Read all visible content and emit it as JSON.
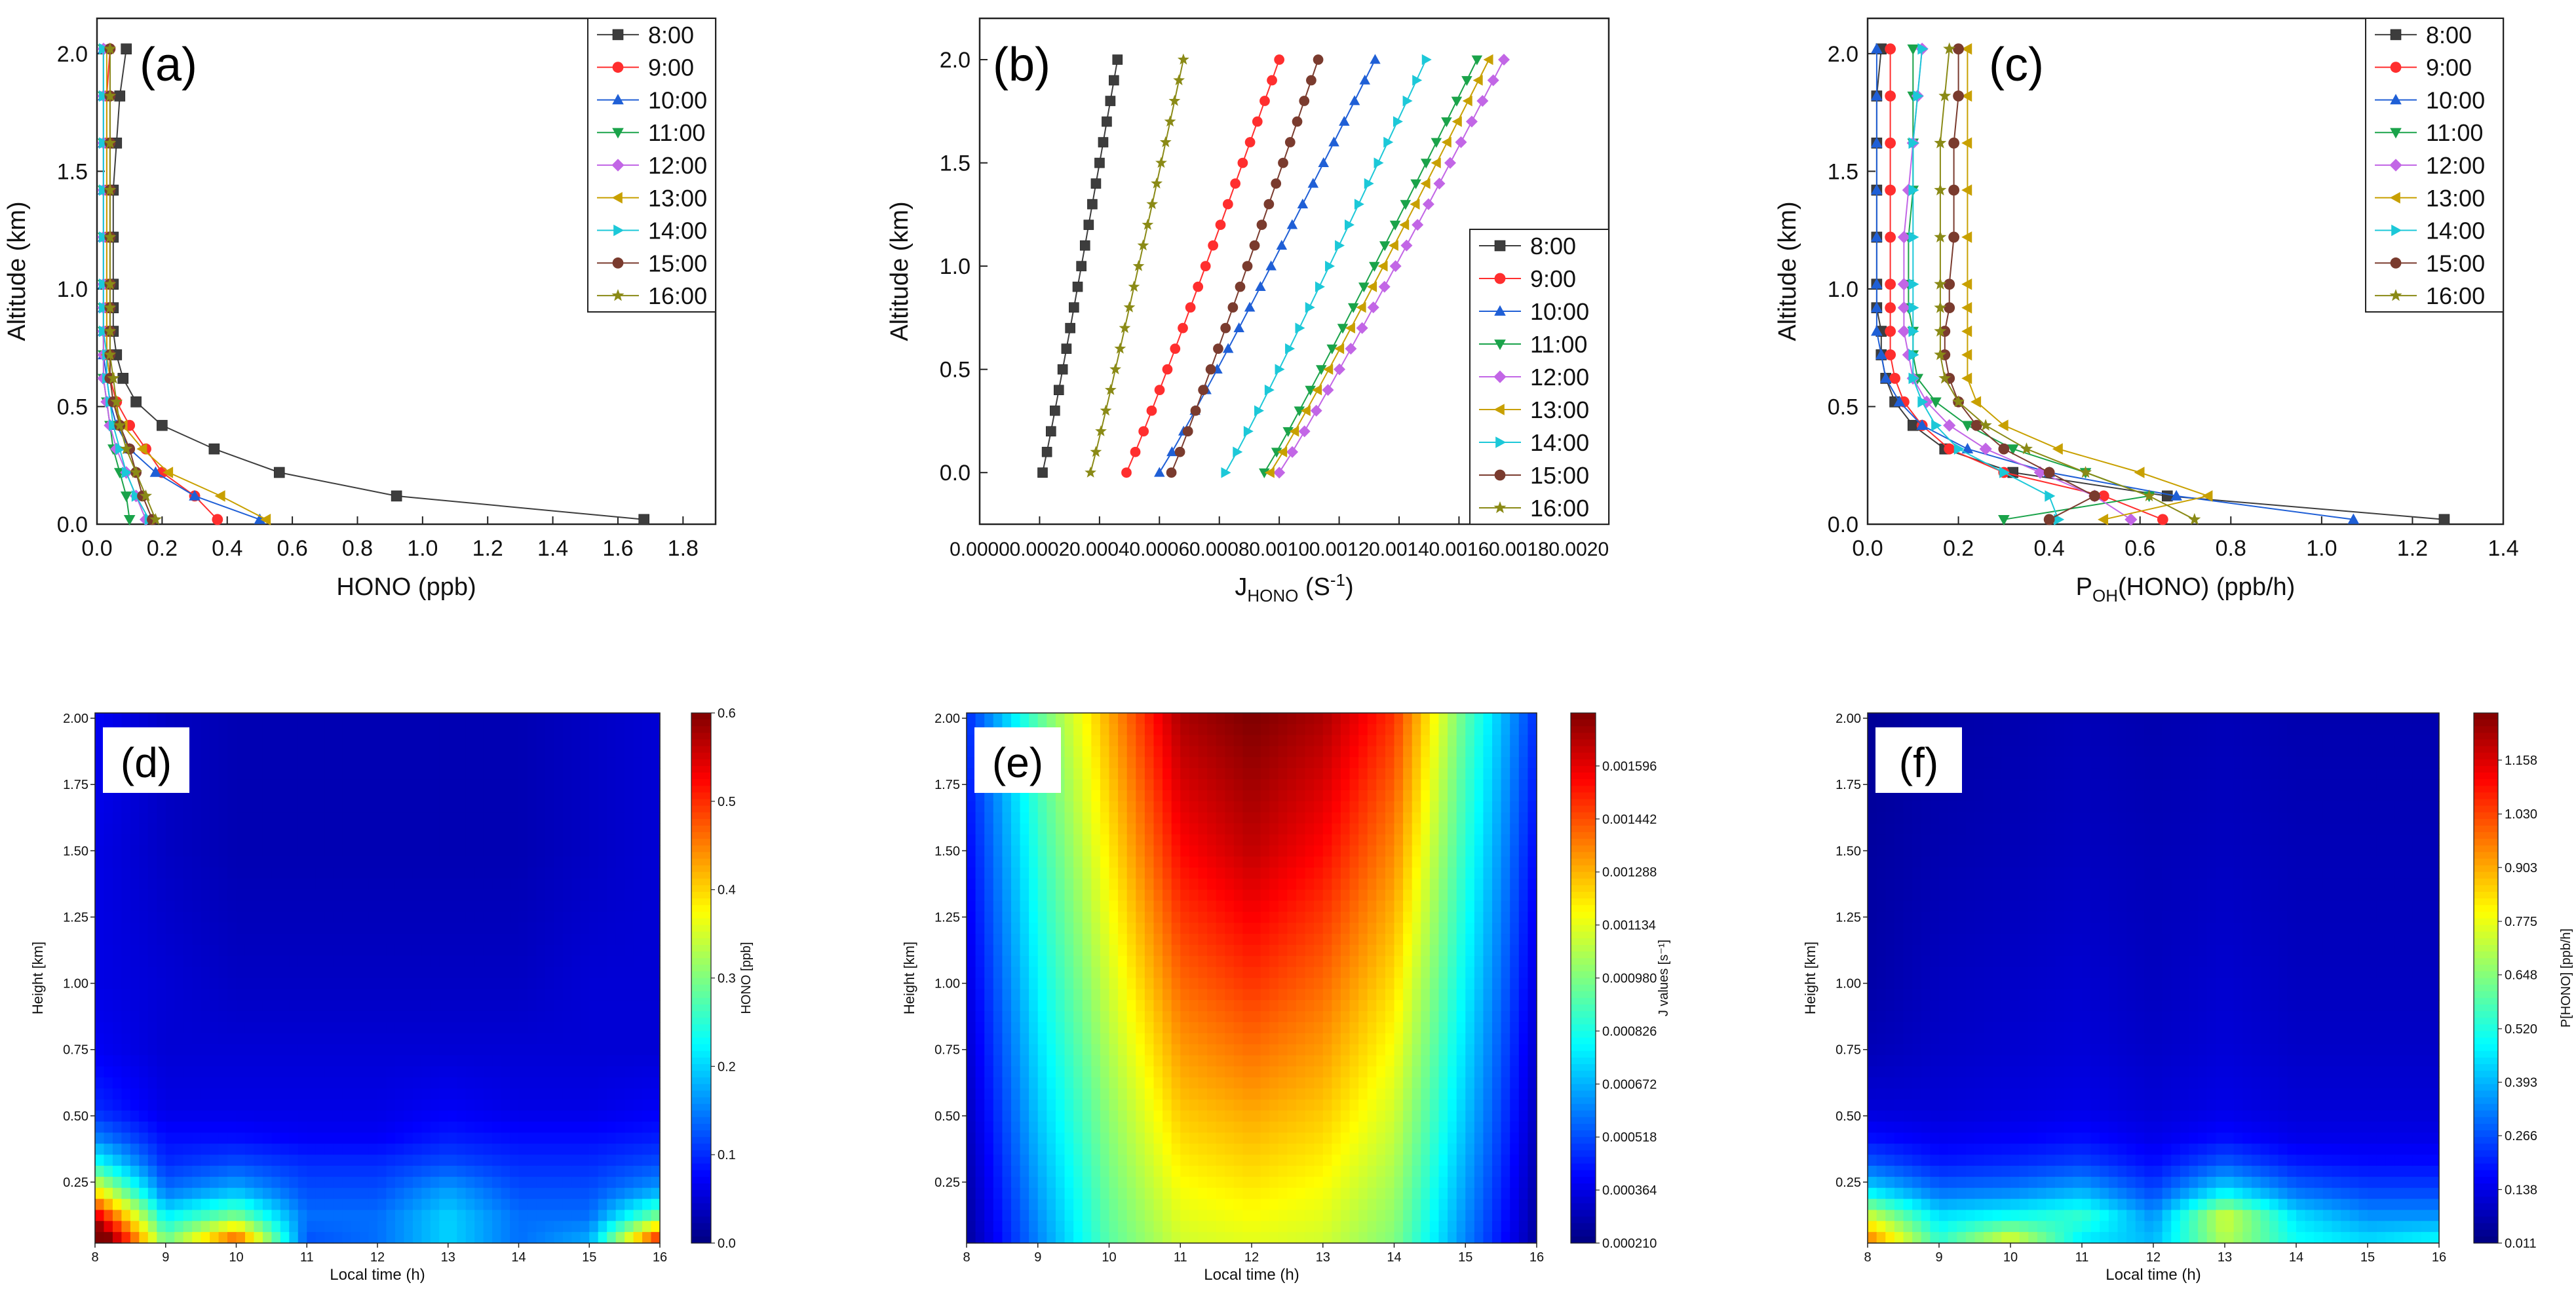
{
  "chart_data": [
    {
      "id": "a",
      "type": "line",
      "panel_label": "(a)",
      "xlabel": "HONO (ppb)",
      "ylabel": "Altitude (km)",
      "xlim": [
        0,
        1.9
      ],
      "ylim": [
        0,
        2.15
      ],
      "xticks": [
        "0.0",
        "0.2",
        "0.4",
        "0.6",
        "0.8",
        "1.0",
        "1.2",
        "1.4",
        "1.6",
        "1.8"
      ],
      "yticks": [
        "0.0",
        "0.5",
        "1.0",
        "1.5",
        "2.0"
      ],
      "legend_position": "top-right",
      "altitudes": [
        0.02,
        0.12,
        0.22,
        0.32,
        0.42,
        0.52,
        0.62,
        0.72,
        0.82,
        0.92,
        1.02,
        1.22,
        1.42,
        1.62,
        1.82,
        2.02
      ],
      "series": [
        {
          "name": "8:00",
          "values": [
            1.68,
            0.92,
            0.56,
            0.36,
            0.2,
            0.12,
            0.08,
            0.06,
            0.05,
            0.05,
            0.05,
            0.05,
            0.05,
            0.06,
            0.07,
            0.09
          ]
        },
        {
          "name": "9:00",
          "values": [
            0.37,
            0.3,
            0.2,
            0.15,
            0.1,
            0.06,
            0.04,
            0.03,
            0.03,
            0.03,
            0.03,
            0.03,
            0.03,
            0.03,
            0.03,
            0.04
          ]
        },
        {
          "name": "10:00",
          "values": [
            0.5,
            0.3,
            0.18,
            0.1,
            0.06,
            0.04,
            0.03,
            0.02,
            0.02,
            0.02,
            0.02,
            0.02,
            0.02,
            0.02,
            0.02,
            0.02
          ]
        },
        {
          "name": "11:00",
          "values": [
            0.1,
            0.09,
            0.07,
            0.05,
            0.04,
            0.03,
            0.02,
            0.02,
            0.02,
            0.02,
            0.02,
            0.02,
            0.02,
            0.02,
            0.02,
            0.02
          ]
        },
        {
          "name": "12:00",
          "values": [
            0.15,
            0.12,
            0.09,
            0.06,
            0.04,
            0.03,
            0.02,
            0.02,
            0.02,
            0.02,
            0.02,
            0.02,
            0.02,
            0.02,
            0.02,
            0.02
          ]
        },
        {
          "name": "13:00",
          "values": [
            0.52,
            0.38,
            0.22,
            0.14,
            0.08,
            0.05,
            0.04,
            0.03,
            0.03,
            0.03,
            0.03,
            0.03,
            0.03,
            0.03,
            0.03,
            0.03
          ]
        },
        {
          "name": "14:00",
          "values": [
            0.16,
            0.12,
            0.09,
            0.07,
            0.05,
            0.04,
            0.03,
            0.03,
            0.02,
            0.02,
            0.02,
            0.02,
            0.02,
            0.02,
            0.02,
            0.02
          ]
        },
        {
          "name": "15:00",
          "values": [
            0.17,
            0.14,
            0.12,
            0.1,
            0.07,
            0.05,
            0.04,
            0.04,
            0.04,
            0.04,
            0.04,
            0.04,
            0.04,
            0.04,
            0.04,
            0.04
          ]
        },
        {
          "name": "16:00",
          "values": [
            0.18,
            0.15,
            0.12,
            0.09,
            0.07,
            0.06,
            0.05,
            0.04,
            0.04,
            0.04,
            0.04,
            0.04,
            0.04,
            0.04,
            0.04,
            0.04
          ]
        }
      ]
    },
    {
      "id": "b",
      "type": "line",
      "panel_label": "(b)",
      "xlabel": "J",
      "xlabel_sub": "HONO",
      "xlabel_unit": " (S",
      "xlabel_sup": "-1",
      "xlabel_close": ")",
      "ylabel": "Altitude (km)",
      "xlim": [
        0,
        0.0021
      ],
      "ylim": [
        -0.25,
        2.2
      ],
      "xticks": [
        "0.0000",
        "0.0002",
        "0.0004",
        "0.0006",
        "0.0008",
        "0.0010",
        "0.0012",
        "0.0014",
        "0.0016",
        "0.0018",
        "0.0020"
      ],
      "yticks": [
        "0.0",
        "0.5",
        "1.0",
        "1.5",
        "2.0"
      ],
      "legend_position": "bottom-right",
      "altitudes": [
        0.0,
        0.1,
        0.2,
        0.3,
        0.4,
        0.5,
        0.6,
        0.7,
        0.8,
        0.9,
        1.0,
        1.1,
        1.2,
        1.3,
        1.4,
        1.5,
        1.6,
        1.7,
        1.8,
        1.9,
        2.0
      ],
      "series": [
        {
          "name": "8:00",
          "start": 0.00021,
          "end": 0.00046
        },
        {
          "name": "9:00",
          "start": 0.00049,
          "end": 0.001
        },
        {
          "name": "10:00",
          "start": 0.0006,
          "end": 0.00132
        },
        {
          "name": "11:00",
          "start": 0.00095,
          "end": 0.00166
        },
        {
          "name": "12:00",
          "start": 0.001,
          "end": 0.00175
        },
        {
          "name": "13:00",
          "start": 0.00097,
          "end": 0.0017
        },
        {
          "name": "14:00",
          "start": 0.00082,
          "end": 0.00149
        },
        {
          "name": "15:00",
          "start": 0.00064,
          "end": 0.00113
        },
        {
          "name": "16:00",
          "start": 0.00037,
          "end": 0.00068
        }
      ]
    },
    {
      "id": "c",
      "type": "line",
      "panel_label": "(c)",
      "xlabel": "P",
      "xlabel_sub": "OH",
      "xlabel_rest": "(HONO) (ppb/h)",
      "ylabel": "Altitude (km)",
      "xlim": [
        0,
        1.4
      ],
      "ylim": [
        0,
        2.15
      ],
      "xticks": [
        "0.0",
        "0.2",
        "0.4",
        "0.6",
        "0.8",
        "1.0",
        "1.2",
        "1.4"
      ],
      "yticks": [
        "0.0",
        "0.5",
        "1.0",
        "1.5",
        "2.0"
      ],
      "legend_position": "top-right",
      "altitudes": [
        0.02,
        0.12,
        0.22,
        0.32,
        0.42,
        0.52,
        0.62,
        0.72,
        0.82,
        0.92,
        1.02,
        1.22,
        1.42,
        1.62,
        1.82,
        2.02
      ],
      "series": [
        {
          "name": "8:00",
          "values": [
            1.27,
            0.66,
            0.32,
            0.17,
            0.1,
            0.06,
            0.04,
            0.03,
            0.03,
            0.02,
            0.02,
            0.02,
            0.02,
            0.02,
            0.02,
            0.03
          ]
        },
        {
          "name": "9:00",
          "values": [
            0.65,
            0.52,
            0.3,
            0.18,
            0.12,
            0.08,
            0.06,
            0.05,
            0.05,
            0.05,
            0.05,
            0.05,
            0.05,
            0.05,
            0.05,
            0.05
          ]
        },
        {
          "name": "10:00",
          "values": [
            1.07,
            0.68,
            0.4,
            0.22,
            0.12,
            0.07,
            0.04,
            0.03,
            0.02,
            0.02,
            0.02,
            0.02,
            0.02,
            0.02,
            0.02,
            0.02
          ]
        },
        {
          "name": "11:00",
          "values": [
            0.3,
            0.62,
            0.48,
            0.32,
            0.22,
            0.15,
            0.11,
            0.1,
            0.1,
            0.09,
            0.09,
            0.09,
            0.1,
            0.1,
            0.1,
            0.1
          ]
        },
        {
          "name": "12:00",
          "values": [
            0.58,
            0.5,
            0.38,
            0.26,
            0.18,
            0.13,
            0.1,
            0.09,
            0.08,
            0.08,
            0.08,
            0.08,
            0.09,
            0.1,
            0.11,
            0.12
          ]
        },
        {
          "name": "13:00",
          "values": [
            0.52,
            0.75,
            0.6,
            0.42,
            0.3,
            0.24,
            0.22,
            0.22,
            0.22,
            0.22,
            0.22,
            0.22,
            0.22,
            0.22,
            0.22,
            0.22
          ]
        },
        {
          "name": "14:00",
          "values": [
            0.42,
            0.4,
            0.3,
            0.2,
            0.15,
            0.12,
            0.1,
            0.1,
            0.1,
            0.1,
            0.1,
            0.1,
            0.1,
            0.1,
            0.11,
            0.12
          ]
        },
        {
          "name": "15:00",
          "values": [
            0.4,
            0.5,
            0.4,
            0.3,
            0.24,
            0.2,
            0.18,
            0.17,
            0.17,
            0.18,
            0.18,
            0.19,
            0.19,
            0.19,
            0.2,
            0.2
          ]
        },
        {
          "name": "16:00",
          "values": [
            0.72,
            0.62,
            0.48,
            0.35,
            0.26,
            0.2,
            0.17,
            0.16,
            0.16,
            0.16,
            0.16,
            0.16,
            0.16,
            0.16,
            0.17,
            0.18
          ]
        }
      ]
    },
    {
      "id": "d",
      "type": "heatmap",
      "panel_label": "(d)",
      "xlabel": "Local time (h)",
      "ylabel": "Height [km]",
      "colorbar_label": "HONO [ppb]",
      "x": [
        8,
        9,
        10,
        11,
        12,
        13,
        14,
        15,
        16
      ],
      "xticks": [
        "8",
        "9",
        "10",
        "11",
        "12",
        "13",
        "14",
        "15",
        "16"
      ],
      "yticks": [
        "0.25",
        "0.50",
        "0.75",
        "1.00",
        "1.25",
        "1.50",
        "1.75",
        "2.00"
      ],
      "cbar_ticks": [
        "0.0",
        "0.1",
        "0.2",
        "0.3",
        "0.4",
        "0.5",
        "0.6"
      ],
      "zlim": [
        0,
        0.6
      ],
      "heights": [
        0.02,
        0.12,
        0.22,
        0.32,
        0.42,
        0.52,
        0.75,
        1.0,
        1.5,
        2.0
      ],
      "z": [
        [
          0.7,
          0.3,
          0.5,
          0.12,
          0.14,
          0.2,
          0.14,
          0.18,
          0.55
        ],
        [
          0.55,
          0.22,
          0.3,
          0.14,
          0.14,
          0.2,
          0.14,
          0.14,
          0.3
        ],
        [
          0.38,
          0.14,
          0.18,
          0.12,
          0.12,
          0.17,
          0.12,
          0.12,
          0.17
        ],
        [
          0.24,
          0.1,
          0.12,
          0.1,
          0.1,
          0.12,
          0.1,
          0.1,
          0.12
        ],
        [
          0.15,
          0.08,
          0.08,
          0.07,
          0.07,
          0.09,
          0.08,
          0.08,
          0.09
        ],
        [
          0.1,
          0.06,
          0.06,
          0.06,
          0.06,
          0.07,
          0.06,
          0.06,
          0.07
        ],
        [
          0.07,
          0.05,
          0.05,
          0.05,
          0.05,
          0.05,
          0.05,
          0.05,
          0.05
        ],
        [
          0.06,
          0.05,
          0.04,
          0.04,
          0.04,
          0.04,
          0.04,
          0.05,
          0.05
        ],
        [
          0.06,
          0.04,
          0.03,
          0.03,
          0.03,
          0.03,
          0.03,
          0.04,
          0.05
        ],
        [
          0.07,
          0.04,
          0.03,
          0.03,
          0.03,
          0.03,
          0.03,
          0.04,
          0.05
        ]
      ]
    },
    {
      "id": "e",
      "type": "heatmap",
      "panel_label": "(e)",
      "xlabel": "Local time (h)",
      "ylabel": "Height [km]",
      "colorbar_label": "J values [s⁻¹]",
      "x": [
        8,
        9,
        10,
        11,
        12,
        13,
        14,
        15,
        16
      ],
      "xticks": [
        "8",
        "9",
        "10",
        "11",
        "12",
        "13",
        "14",
        "15",
        "16"
      ],
      "yticks": [
        "0.25",
        "0.50",
        "0.75",
        "1.00",
        "1.25",
        "1.50",
        "1.75",
        "2.00"
      ],
      "cbar_ticks": [
        "0.000210",
        "0.000364",
        "0.000518",
        "0.000672",
        "0.000826",
        "0.000980",
        "0.001134",
        "0.001288",
        "0.001442",
        "0.001596"
      ],
      "zlim": [
        0.00021,
        0.00175
      ],
      "heights": [
        0.02,
        0.5,
        1.0,
        1.5,
        2.0
      ],
      "z": [
        [
          0.00025,
          0.0006,
          0.00092,
          0.0011,
          0.00113,
          0.0011,
          0.00098,
          0.0006,
          0.00025
        ],
        [
          0.0003,
          0.0007,
          0.001,
          0.00125,
          0.0013,
          0.00125,
          0.0011,
          0.0007,
          0.0003
        ],
        [
          0.00035,
          0.00078,
          0.0011,
          0.0014,
          0.00148,
          0.0014,
          0.00122,
          0.00078,
          0.00035
        ],
        [
          0.0004,
          0.00085,
          0.0012,
          0.00155,
          0.00165,
          0.00155,
          0.00135,
          0.00085,
          0.0004
        ],
        [
          0.00046,
          0.00092,
          0.0013,
          0.00168,
          0.00175,
          0.00168,
          0.00148,
          0.00092,
          0.00046
        ]
      ]
    },
    {
      "id": "f",
      "type": "heatmap",
      "panel_label": "(f)",
      "xlabel": "Local time (h)",
      "ylabel": "Height [km]",
      "colorbar_label": "P[HONO] [ppb/h]",
      "x": [
        8,
        9,
        10,
        11,
        12,
        13,
        14,
        15,
        16
      ],
      "xticks": [
        "8",
        "9",
        "10",
        "11",
        "12",
        "13",
        "14",
        "15",
        "16"
      ],
      "yticks": [
        "0.25",
        "0.50",
        "0.75",
        "1.00",
        "1.25",
        "1.50",
        "1.75",
        "2.00"
      ],
      "cbar_ticks": [
        "0.011",
        "0.138",
        "0.266",
        "0.393",
        "0.520",
        "0.648",
        "0.775",
        "0.903",
        "1.030",
        "1.158"
      ],
      "zlim": [
        0.011,
        1.27
      ],
      "heights": [
        0.02,
        0.12,
        0.22,
        0.32,
        0.42,
        0.52,
        0.75,
        1.0,
        1.5,
        2.0
      ],
      "z": [
        [
          1.0,
          0.55,
          0.8,
          0.45,
          0.4,
          0.7,
          0.5,
          0.45,
          0.5
        ],
        [
          0.75,
          0.45,
          0.5,
          0.55,
          0.35,
          0.75,
          0.45,
          0.35,
          0.35
        ],
        [
          0.45,
          0.3,
          0.32,
          0.38,
          0.25,
          0.45,
          0.3,
          0.25,
          0.25
        ],
        [
          0.28,
          0.2,
          0.22,
          0.25,
          0.18,
          0.28,
          0.2,
          0.18,
          0.18
        ],
        [
          0.18,
          0.15,
          0.16,
          0.18,
          0.14,
          0.18,
          0.14,
          0.14,
          0.14
        ],
        [
          0.12,
          0.12,
          0.13,
          0.14,
          0.12,
          0.14,
          0.12,
          0.12,
          0.12
        ],
        [
          0.08,
          0.1,
          0.11,
          0.12,
          0.1,
          0.12,
          0.1,
          0.1,
          0.1
        ],
        [
          0.06,
          0.09,
          0.1,
          0.11,
          0.09,
          0.11,
          0.09,
          0.09,
          0.09
        ],
        [
          0.05,
          0.07,
          0.08,
          0.09,
          0.08,
          0.09,
          0.08,
          0.08,
          0.08
        ],
        [
          0.04,
          0.06,
          0.07,
          0.08,
          0.07,
          0.08,
          0.07,
          0.07,
          0.07
        ]
      ]
    }
  ],
  "series_colors": [
    "#3d3d3d",
    "#ff2e2e",
    "#1f5fd6",
    "#1aa34a",
    "#c266e6",
    "#c8a000",
    "#1cc8d8",
    "#7a3b2e",
    "#8a8a16"
  ],
  "series_markers": [
    "square",
    "circle",
    "triangle-up",
    "triangle-down",
    "diamond",
    "triangle-left",
    "triangle-right",
    "hexagon",
    "star"
  ]
}
